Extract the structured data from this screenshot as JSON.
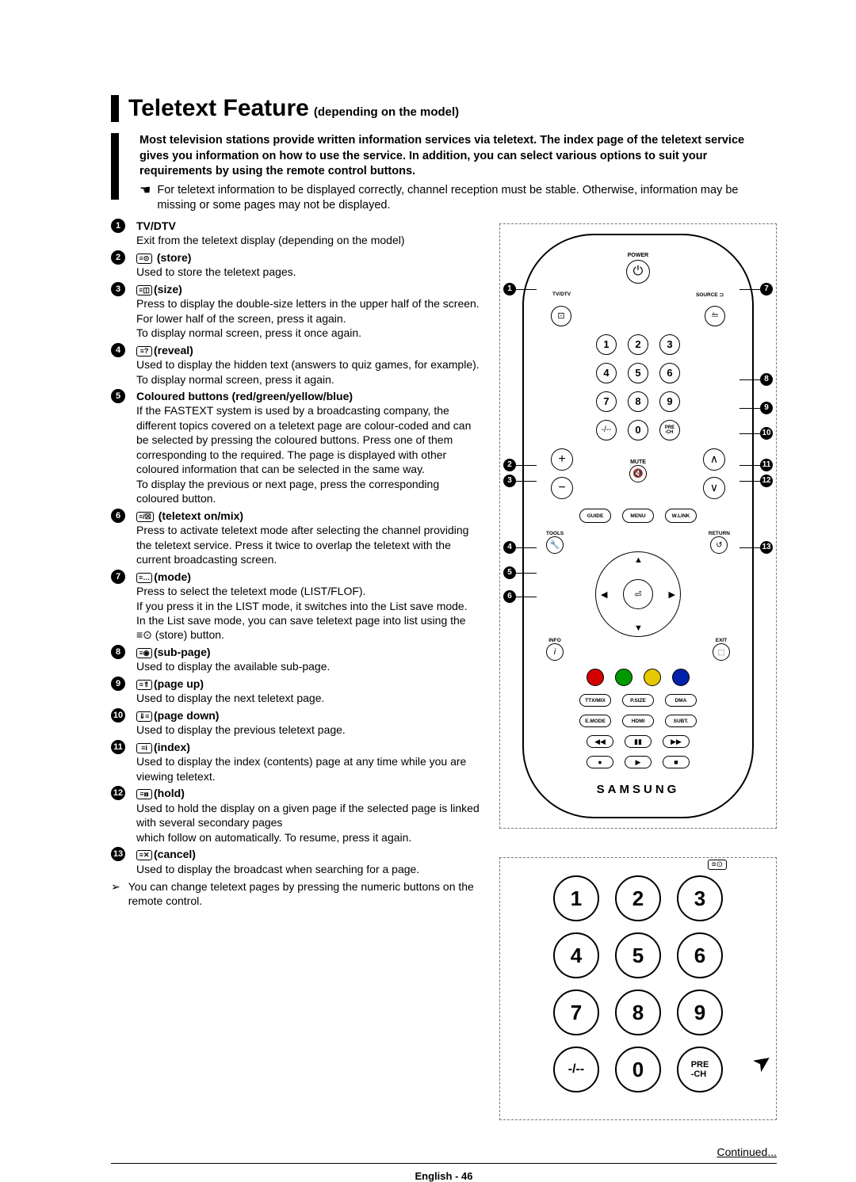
{
  "title_main": "Teletext Feature",
  "title_sub": "(depending on the model)",
  "intro_bold": "Most television stations provide written information services via teletext. The index page of the teletext service gives you information on how to use the service. In addition, you can select various options to suit your requirements by using the remote control buttons.",
  "intro_note": "For teletext information to be displayed correctly, channel reception must be stable. Otherwise, information may be missing or some pages may not be displayed.",
  "items": [
    {
      "icon": "",
      "title": "TV/DTV",
      "body": "Exit from the teletext display (depending on the model)"
    },
    {
      "icon": "≡⊙",
      "title": " (store)",
      "body": "Used to store the teletext pages."
    },
    {
      "icon": "≡◫",
      "title": "(size)",
      "body": "Press to display the double-size letters in the upper half of the screen. For lower half of the screen, press it again.\nTo display normal screen, press it once again."
    },
    {
      "icon": "≡?",
      "title": "(reveal)",
      "body": "Used to display the hidden text (answers to quiz games, for example). To display normal screen, press it again."
    },
    {
      "icon": "",
      "title": "Coloured buttons (red/green/yellow/blue)",
      "body": "If the FASTEXT system is used by a broadcasting company, the different topics covered on a teletext page are colour-coded and can be selected by pressing the coloured buttons. Press one of them corresponding to the required. The page is displayed with other coloured information that can be selected in the same way.\nTo display the previous or next page, press the corresponding coloured button."
    },
    {
      "icon": "≡/☒",
      "title": " (teletext on/mix)",
      "body": "Press to activate teletext mode after selecting the channel providing the teletext service. Press it twice to overlap the teletext with the current broadcasting screen."
    },
    {
      "icon": "≡…",
      "title": "(mode)",
      "body": "Press to select the teletext mode (LIST/FLOF).\nIf you press it in the LIST mode, it switches into the List save mode.\nIn the List save mode, you can save teletext page into list using the ≡⊙ (store) button."
    },
    {
      "icon": "≡◉",
      "title": "(sub-page)",
      "body": "Used to display the available sub-page."
    },
    {
      "icon": "≡⇑",
      "title": "(page up)",
      "body": "Used to display the next teletext page."
    },
    {
      "icon": "⇓≡",
      "title": "(page down)",
      "body": "Used to display the previous teletext page."
    },
    {
      "icon": "≡i",
      "title": "(index)",
      "body": "Used to display the index (contents) page at any time while you are viewing teletext."
    },
    {
      "icon": "≡⧇",
      "title": "(hold)",
      "body": "Used to hold the display on a given page if the selected page is linked with several secondary pages\nwhich follow on automatically. To resume, press it again."
    },
    {
      "icon": "≡✕",
      "title": "(cancel)",
      "body": "Used to display the broadcast when searching for a page."
    }
  ],
  "final_note": "You can change teletext pages by pressing the numeric buttons on the remote control.",
  "brand": "SAMSUNG",
  "remote_callouts_left": [
    "1",
    "2",
    "3",
    "4",
    "5",
    "6"
  ],
  "remote_callouts_right": [
    "7",
    "8",
    "9",
    "10",
    "11",
    "12",
    "13"
  ],
  "numpad": [
    "1",
    "2",
    "3",
    "4",
    "5",
    "6",
    "7",
    "8",
    "9"
  ],
  "bottom_row": [
    "-/--",
    "0",
    "PRE\n-CH"
  ],
  "small_btns_row1": [
    "TTX/MIX",
    "P.SIZE",
    "DMA"
  ],
  "small_btns_row2": [
    "E.MODE",
    "HDMI",
    "SUBT."
  ],
  "menu_row": [
    "GUIDE",
    "MENU",
    "W.LINK"
  ],
  "tools_return": [
    "TOOLS",
    "RETURN"
  ],
  "info_exit": [
    "INFO",
    "EXIT"
  ],
  "continued": "Continued...",
  "footer": "English - 46",
  "colors": {
    "red": "#d40000",
    "green": "#009a00",
    "yellow": "#e6c800",
    "blue": "#0022aa"
  }
}
